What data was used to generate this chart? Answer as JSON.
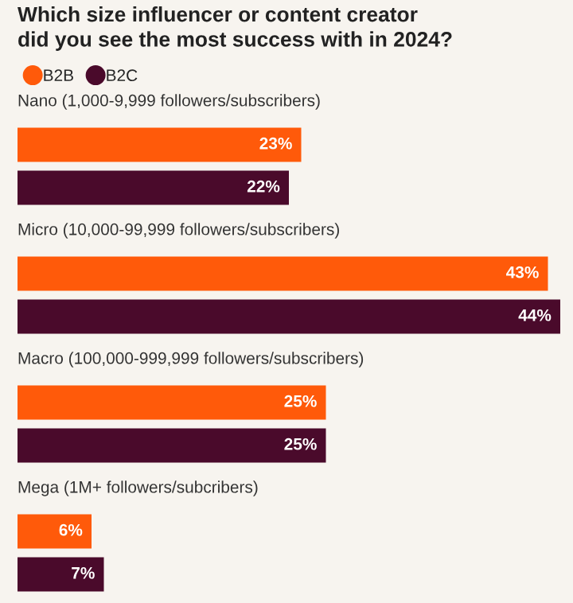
{
  "chart_data": {
    "type": "bar",
    "orientation": "horizontal",
    "title": "Which size influencer or content creator\ndid you see the most success with in 2024?",
    "categories": [
      "Nano (1,000-9,999 followers/subscribers)",
      "Micro (10,000-99,999 followers/subscribers)",
      "Macro (100,000-999,999 followers/subscribers)",
      "Mega (1M+ followers/subcribers)"
    ],
    "series": [
      {
        "name": "B2B",
        "color": "#ff5a0a",
        "values": [
          23,
          43,
          25,
          6
        ],
        "value_labels": [
          "23%",
          "43%",
          "25%",
          "6%"
        ]
      },
      {
        "name": "B2C",
        "color": "#4a0a2b",
        "values": [
          22,
          44,
          25,
          7
        ],
        "value_labels": [
          "22%",
          "44%",
          "25%",
          "7%"
        ]
      }
    ],
    "legend": "top left"
  }
}
